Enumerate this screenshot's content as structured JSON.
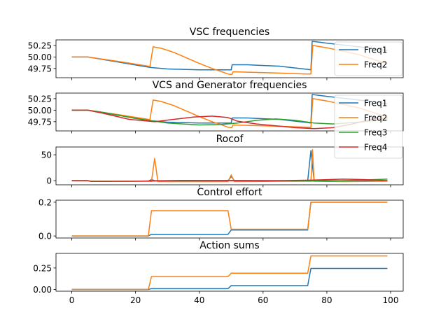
{
  "colors": {
    "blue": "#1f77b4",
    "orange": "#ff7f0e",
    "green": "#2ca02c",
    "red": "#d62728",
    "axis": "#000000",
    "background": "#ffffff"
  },
  "chart_data": [
    {
      "type": "line",
      "title": "VSC frequencies",
      "xlim": [
        -4.95,
        103.95
      ],
      "ylim": [
        49.55,
        50.37
      ],
      "yticks": [
        49.75,
        50.0,
        50.25
      ],
      "ytick_labels": [
        "49.75",
        "50.00",
        "50.25"
      ],
      "show_xtick_labels": false,
      "legend": "top-right",
      "series": [
        {
          "name": "Freq1",
          "color": "#1f77b4",
          "points": [
            [
              0,
              50.0
            ],
            [
              5,
              50.0
            ],
            [
              24,
              49.78
            ],
            [
              25,
              49.77
            ],
            [
              30,
              49.74
            ],
            [
              40,
              49.72
            ],
            [
              49,
              49.72
            ],
            [
              50,
              49.72
            ],
            [
              50.3,
              49.83
            ],
            [
              55,
              49.83
            ],
            [
              65,
              49.8
            ],
            [
              74,
              49.73
            ],
            [
              75,
              49.72
            ],
            [
              75.4,
              50.34
            ],
            [
              80,
              50.3
            ],
            [
              90,
              50.22
            ],
            [
              99,
              50.14
            ]
          ]
        },
        {
          "name": "Freq2",
          "color": "#ff7f0e",
          "points": [
            [
              0,
              50.0
            ],
            [
              5,
              50.0
            ],
            [
              15,
              49.9
            ],
            [
              24,
              49.8
            ],
            [
              24.5,
              49.79
            ],
            [
              25.5,
              50.22
            ],
            [
              28,
              50.19
            ],
            [
              32,
              50.1
            ],
            [
              36,
              49.98
            ],
            [
              40,
              49.86
            ],
            [
              44,
              49.75
            ],
            [
              47,
              49.68
            ],
            [
              49,
              49.63
            ],
            [
              50.2,
              49.62
            ],
            [
              50.6,
              49.68
            ],
            [
              55,
              49.67
            ],
            [
              65,
              49.65
            ],
            [
              74,
              49.63
            ],
            [
              75,
              49.63
            ],
            [
              75.6,
              50.25
            ],
            [
              80,
              50.2
            ],
            [
              90,
              50.05
            ],
            [
              99,
              49.85
            ]
          ]
        }
      ]
    },
    {
      "type": "line",
      "title": "VCS and Generator frequencies",
      "xlim": [
        -4.95,
        103.95
      ],
      "ylim": [
        49.55,
        50.37
      ],
      "yticks": [
        49.75,
        50.0,
        50.25
      ],
      "ytick_labels": [
        "49.75",
        "50.00",
        "50.25"
      ],
      "show_xtick_labels": false,
      "legend": "top-right",
      "series": [
        {
          "name": "Freq1",
          "color": "#1f77b4",
          "points": [
            [
              0,
              50.0
            ],
            [
              5,
              50.0
            ],
            [
              24,
              49.78
            ],
            [
              25,
              49.77
            ],
            [
              30,
              49.74
            ],
            [
              40,
              49.72
            ],
            [
              49,
              49.72
            ],
            [
              50,
              49.72
            ],
            [
              50.3,
              49.83
            ],
            [
              55,
              49.83
            ],
            [
              65,
              49.8
            ],
            [
              74,
              49.73
            ],
            [
              75,
              49.72
            ],
            [
              75.4,
              50.34
            ],
            [
              80,
              50.3
            ],
            [
              90,
              50.22
            ],
            [
              99,
              50.14
            ]
          ]
        },
        {
          "name": "Freq2",
          "color": "#ff7f0e",
          "points": [
            [
              0,
              50.0
            ],
            [
              5,
              50.0
            ],
            [
              15,
              49.9
            ],
            [
              24,
              49.8
            ],
            [
              24.5,
              49.79
            ],
            [
              25.5,
              50.22
            ],
            [
              28,
              50.19
            ],
            [
              32,
              50.1
            ],
            [
              36,
              49.98
            ],
            [
              40,
              49.86
            ],
            [
              44,
              49.75
            ],
            [
              47,
              49.68
            ],
            [
              49,
              49.63
            ],
            [
              50.2,
              49.62
            ],
            [
              50.6,
              49.68
            ],
            [
              55,
              49.67
            ],
            [
              65,
              49.65
            ],
            [
              74,
              49.63
            ],
            [
              75,
              49.63
            ],
            [
              75.6,
              50.25
            ],
            [
              80,
              50.2
            ],
            [
              90,
              50.05
            ],
            [
              99,
              49.85
            ]
          ]
        },
        {
          "name": "Freq3",
          "color": "#2ca02c",
          "points": [
            [
              0,
              50.0
            ],
            [
              5,
              50.0
            ],
            [
              10,
              49.95
            ],
            [
              20,
              49.82
            ],
            [
              30,
              49.72
            ],
            [
              40,
              49.68
            ],
            [
              47,
              49.69
            ],
            [
              52,
              49.72
            ],
            [
              58,
              49.78
            ],
            [
              64,
              49.81
            ],
            [
              70,
              49.78
            ],
            [
              76,
              49.72
            ],
            [
              82,
              49.7
            ],
            [
              90,
              49.74
            ],
            [
              99,
              49.8
            ]
          ]
        },
        {
          "name": "Freq4",
          "color": "#d62728",
          "points": [
            [
              0,
              50.0
            ],
            [
              5,
              50.0
            ],
            [
              10,
              49.93
            ],
            [
              18,
              49.8
            ],
            [
              26,
              49.75
            ],
            [
              32,
              49.8
            ],
            [
              38,
              49.85
            ],
            [
              44,
              49.87
            ],
            [
              49,
              49.84
            ],
            [
              52,
              49.76
            ],
            [
              58,
              49.7
            ],
            [
              64,
              49.66
            ],
            [
              70,
              49.62
            ],
            [
              76,
              49.6
            ],
            [
              82,
              49.62
            ],
            [
              88,
              49.7
            ],
            [
              94,
              49.8
            ],
            [
              99,
              49.83
            ]
          ]
        }
      ]
    },
    {
      "type": "line",
      "title": "Rocof",
      "xlim": [
        -4.95,
        103.95
      ],
      "ylim": [
        -8,
        65
      ],
      "yticks": [
        0,
        50
      ],
      "ytick_labels": [
        "0",
        "50"
      ],
      "show_xtick_labels": false,
      "series": [
        {
          "name": "",
          "color": "#1f77b4",
          "points": [
            [
              0,
              0
            ],
            [
              5,
              0
            ],
            [
              6,
              -1
            ],
            [
              24,
              -1
            ],
            [
              25,
              2
            ],
            [
              26,
              0
            ],
            [
              49,
              0
            ],
            [
              50,
              8
            ],
            [
              51,
              0
            ],
            [
              74,
              0
            ],
            [
              75,
              58
            ],
            [
              76,
              0
            ],
            [
              99,
              0
            ]
          ]
        },
        {
          "name": "",
          "color": "#ff7f0e",
          "points": [
            [
              0,
              0
            ],
            [
              5,
              0
            ],
            [
              6,
              -1
            ],
            [
              24,
              -1
            ],
            [
              25,
              -1.5
            ],
            [
              26,
              43
            ],
            [
              27,
              -2
            ],
            [
              40,
              -2
            ],
            [
              49,
              -2
            ],
            [
              50,
              11
            ],
            [
              51,
              -2
            ],
            [
              74,
              -1
            ],
            [
              75,
              -1
            ],
            [
              75.5,
              60
            ],
            [
              76,
              -1
            ],
            [
              85,
              -2
            ],
            [
              99,
              -1
            ]
          ]
        },
        {
          "name": "",
          "color": "#2ca02c",
          "points": [
            [
              0,
              0
            ],
            [
              5,
              0
            ],
            [
              6,
              -1
            ],
            [
              20,
              -1
            ],
            [
              35,
              0
            ],
            [
              50,
              0.5
            ],
            [
              65,
              0
            ],
            [
              80,
              -1
            ],
            [
              90,
              1
            ],
            [
              99,
              3
            ]
          ]
        },
        {
          "name": "",
          "color": "#d62728",
          "points": [
            [
              0,
              0
            ],
            [
              5,
              0
            ],
            [
              6,
              -1.5
            ],
            [
              20,
              -1
            ],
            [
              35,
              0.5
            ],
            [
              50,
              0
            ],
            [
              60,
              -0.5
            ],
            [
              75,
              1
            ],
            [
              85,
              3
            ],
            [
              92,
              2
            ],
            [
              99,
              0
            ]
          ]
        }
      ]
    },
    {
      "type": "line",
      "title": "Control effort",
      "xlim": [
        -4.95,
        103.95
      ],
      "ylim": [
        -0.012,
        0.212
      ],
      "yticks": [
        0.0,
        0.2
      ],
      "ytick_labels": [
        "0.0",
        "0.2"
      ],
      "show_xtick_labels": false,
      "series": [
        {
          "name": "",
          "color": "#1f77b4",
          "points": [
            [
              0,
              0
            ],
            [
              24,
              0
            ],
            [
              25,
              0.01
            ],
            [
              49,
              0.01
            ],
            [
              50,
              0.035
            ],
            [
              74,
              0.035
            ],
            [
              75,
              0.2
            ],
            [
              99,
              0.2
            ]
          ]
        },
        {
          "name": "",
          "color": "#ff7f0e",
          "points": [
            [
              0,
              0
            ],
            [
              24,
              0
            ],
            [
              25,
              0.15
            ],
            [
              49,
              0.15
            ],
            [
              50,
              0.04
            ],
            [
              74,
              0.04
            ],
            [
              75,
              0.2
            ],
            [
              99,
              0.2
            ]
          ]
        }
      ]
    },
    {
      "type": "line",
      "title": "Action sums",
      "xlim": [
        -4.95,
        103.95
      ],
      "ylim": [
        -0.02,
        0.42
      ],
      "yticks": [
        0.0,
        0.25
      ],
      "ytick_labels": [
        "0.00",
        "0.25"
      ],
      "xticks": [
        0,
        20,
        40,
        60,
        80,
        100
      ],
      "xtick_labels": [
        "0",
        "20",
        "40",
        "60",
        "80",
        "100"
      ],
      "show_xtick_labels": true,
      "series": [
        {
          "name": "",
          "color": "#1f77b4",
          "points": [
            [
              0,
              0
            ],
            [
              24,
              0
            ],
            [
              25,
              0.01
            ],
            [
              49,
              0.01
            ],
            [
              50,
              0.045
            ],
            [
              74,
              0.045
            ],
            [
              75,
              0.245
            ],
            [
              99,
              0.245
            ]
          ]
        },
        {
          "name": "",
          "color": "#ff7f0e",
          "points": [
            [
              0,
              0
            ],
            [
              24,
              0
            ],
            [
              25,
              0.15
            ],
            [
              49,
              0.15
            ],
            [
              50,
              0.19
            ],
            [
              74,
              0.19
            ],
            [
              75,
              0.39
            ],
            [
              99,
              0.39
            ]
          ]
        }
      ]
    }
  ]
}
